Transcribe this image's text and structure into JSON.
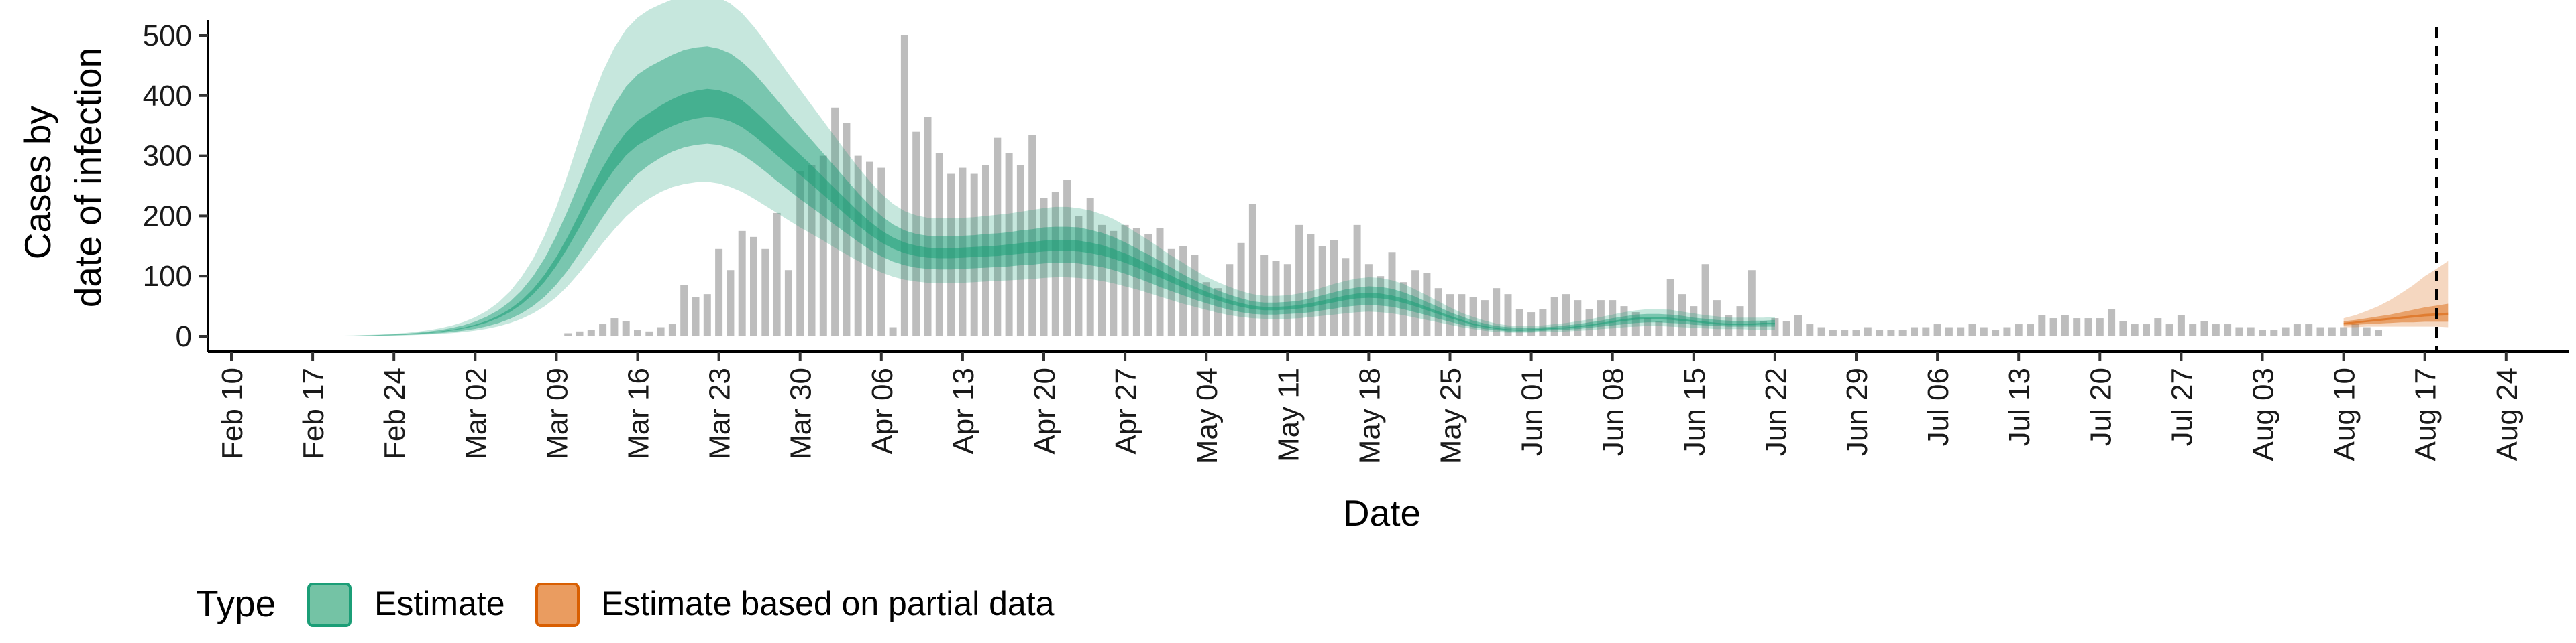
{
  "chart_data": {
    "type": "bar",
    "xlabel": "Date",
    "ylabel_lines": [
      "Cases by",
      "date of infection"
    ],
    "ylim": [
      -28,
      525
    ],
    "y_ticks": [
      0,
      100,
      200,
      300,
      400,
      500
    ],
    "x_tick_labels": [
      "Feb 10",
      "Feb 17",
      "Feb 24",
      "Mar 02",
      "Mar 09",
      "Mar 16",
      "Mar 23",
      "Mar 30",
      "Apr 06",
      "Apr 13",
      "Apr 20",
      "Apr 27",
      "May 04",
      "May 11",
      "May 18",
      "May 25",
      "Jun 01",
      "Jun 08",
      "Jun 15",
      "Jun 22",
      "Jun 29",
      "Jul 06",
      "Jul 13",
      "Jul 20",
      "Jul 27",
      "Aug 03",
      "Aug 10",
      "Aug 17",
      "Aug 24"
    ],
    "x_tick_day_index": [
      0,
      7,
      14,
      21,
      28,
      35,
      42,
      49,
      56,
      63,
      70,
      77,
      84,
      91,
      98,
      105,
      112,
      119,
      126,
      133,
      140,
      147,
      154,
      161,
      168,
      175,
      182,
      189,
      196
    ],
    "date_index_note": "day 0 = Feb 10",
    "vline_day": 190,
    "bars_start_day": 29,
    "reported_cases": [
      5,
      8,
      10,
      20,
      30,
      25,
      10,
      8,
      15,
      20,
      85,
      65,
      70,
      145,
      110,
      175,
      165,
      145,
      205,
      110,
      275,
      285,
      300,
      380,
      355,
      300,
      290,
      280,
      15,
      500,
      340,
      365,
      305,
      270,
      280,
      270,
      285,
      330,
      305,
      285,
      335,
      230,
      240,
      260,
      200,
      230,
      185,
      175,
      185,
      180,
      170,
      180,
      145,
      150,
      135,
      90,
      80,
      120,
      155,
      220,
      135,
      125,
      120,
      185,
      170,
      150,
      160,
      130,
      185,
      120,
      100,
      140,
      90,
      110,
      105,
      80,
      70,
      70,
      65,
      60,
      80,
      70,
      45,
      40,
      45,
      65,
      70,
      60,
      45,
      60,
      60,
      50,
      40,
      30,
      25,
      95,
      70,
      50,
      120,
      60,
      35,
      50,
      110,
      25,
      30,
      25,
      35,
      20,
      15,
      10,
      10,
      10,
      15,
      10,
      10,
      10,
      15,
      15,
      20,
      15,
      15,
      20,
      15,
      10,
      15,
      20,
      20,
      35,
      30,
      35,
      30,
      30,
      30,
      45,
      25,
      20,
      20,
      30,
      20,
      35,
      20,
      25,
      20,
      20,
      15,
      15,
      10,
      10,
      15,
      20,
      20,
      15,
      15,
      15,
      20,
      15,
      10
    ],
    "series": [
      {
        "name": "Estimate",
        "color": "#1b9e77",
        "start_day": 7,
        "median": [
          0.3,
          0.4,
          0.5,
          0.7,
          1.0,
          1.3,
          1.8,
          2.4,
          3.2,
          4.3,
          5.8,
          7.7,
          10.2,
          13.6,
          18.1,
          24.1,
          32.1,
          42.6,
          56.5,
          74.3,
          96.9,
          124.5,
          157,
          193,
          231,
          265,
          295,
          320,
          338,
          350,
          362,
          372,
          380,
          385,
          388,
          386,
          380,
          370,
          355,
          338,
          320,
          302,
          285,
          268,
          250,
          232,
          214,
          196,
          180,
          166,
          155,
          147,
          142,
          139,
          138,
          138,
          139,
          140,
          141,
          142,
          144,
          146,
          148,
          150,
          151,
          151,
          150,
          147,
          143,
          137,
          130,
          122,
          113,
          104,
          95,
          86,
          78,
          70,
          63,
          57,
          52,
          48,
          46,
          46,
          47,
          49,
          52,
          56,
          60,
          64,
          67,
          68,
          67,
          64,
          59,
          53,
          46,
          39,
          32,
          26,
          20,
          16,
          13,
          11,
          10,
          11,
          12,
          13,
          14,
          16,
          18,
          21,
          24,
          27,
          29,
          30,
          30,
          29,
          27,
          25,
          23,
          21,
          20,
          20,
          20,
          21,
          21
        ],
        "lower50": [
          0.2,
          0.3,
          0.4,
          0.5,
          0.7,
          0.9,
          1.2,
          1.6,
          2.2,
          2.9,
          4.0,
          5.3,
          7.0,
          9.3,
          12.3,
          16.4,
          21.7,
          28.8,
          38.2,
          50.4,
          66,
          86,
          110,
          138,
          168,
          198,
          226,
          250,
          270,
          285,
          297,
          307,
          314,
          318,
          320,
          318,
          312,
          302,
          289,
          274,
          258,
          243,
          228,
          214,
          200,
          185,
          171,
          157,
          144,
          133,
          124,
          118,
          114,
          112,
          111,
          111,
          112,
          113,
          114,
          115,
          116,
          118,
          119,
          121,
          122,
          122,
          121,
          118,
          115,
          110,
          104,
          97,
          90,
          82,
          75,
          68,
          61,
          55,
          49,
          44,
          40,
          37,
          36,
          36,
          37,
          38,
          40,
          43,
          46,
          49,
          51,
          52,
          51,
          49,
          45,
          40,
          35,
          29,
          24,
          19,
          15,
          12,
          10,
          8,
          8,
          8,
          9,
          10,
          11,
          12,
          14,
          16,
          18,
          20,
          22,
          23,
          23,
          22,
          21,
          19,
          18,
          17,
          16,
          16,
          16,
          16,
          16
        ],
        "upper50": [
          0.4,
          0.5,
          0.7,
          0.9,
          1.3,
          1.7,
          2.4,
          3.2,
          4.3,
          5.8,
          7.8,
          10.4,
          13.8,
          18.3,
          24.4,
          32.5,
          43.3,
          57.5,
          76.2,
          100,
          130,
          167,
          210,
          257,
          305,
          348,
          385,
          415,
          435,
          448,
          458,
          468,
          476,
          480,
          482,
          478,
          470,
          456,
          438,
          416,
          393,
          370,
          348,
          326,
          304,
          282,
          260,
          238,
          218,
          200,
          186,
          176,
          170,
          167,
          166,
          166,
          167,
          168,
          170,
          171,
          173,
          176,
          178,
          181,
          182,
          182,
          181,
          177,
          172,
          165,
          156,
          146,
          136,
          125,
          114,
          103,
          93,
          84,
          76,
          69,
          63,
          58,
          56,
          56,
          57,
          59,
          63,
          68,
          73,
          78,
          81,
          83,
          82,
          79,
          73,
          66,
          57,
          49,
          40,
          33,
          26,
          21,
          17,
          15,
          14,
          14,
          15,
          16,
          18,
          20,
          23,
          26,
          30,
          33,
          36,
          37,
          37,
          36,
          34,
          31,
          29,
          27,
          26,
          25,
          26,
          26,
          27
        ],
        "lower90": [
          0.1,
          0.2,
          0.3,
          0.4,
          0.5,
          0.7,
          0.9,
          1.2,
          1.6,
          2.2,
          3.0,
          4.0,
          5.3,
          7.0,
          9.3,
          12.4,
          16.4,
          21.8,
          28.9,
          38.1,
          50,
          65,
          84,
          106,
          130,
          155,
          178,
          199,
          216,
          229,
          240,
          248,
          253,
          256,
          257,
          254,
          248,
          240,
          229,
          217,
          205,
          193,
          181,
          170,
          159,
          147,
          136,
          125,
          115,
          106,
          99,
          94,
          91,
          89,
          88,
          88,
          89,
          90,
          91,
          92,
          93,
          94,
          95,
          97,
          98,
          98,
          97,
          95,
          92,
          88,
          83,
          78,
          72,
          66,
          60,
          54,
          49,
          44,
          39,
          35,
          32,
          30,
          29,
          29,
          29,
          30,
          32,
          34,
          36,
          38,
          40,
          41,
          40,
          38,
          35,
          31,
          27,
          23,
          19,
          15,
          12,
          9,
          7,
          6,
          6,
          6,
          7,
          7,
          8,
          9,
          10,
          12,
          13,
          15,
          16,
          17,
          17,
          16,
          15,
          14,
          13,
          12,
          12,
          12,
          11,
          11,
          11
        ],
        "upper90": [
          0.5,
          0.7,
          0.9,
          1.2,
          1.7,
          2.3,
          3.1,
          4.2,
          5.6,
          7.5,
          10.0,
          13.4,
          17.8,
          23.7,
          31.6,
          42.1,
          56.1,
          74.5,
          98.8,
          129,
          168,
          215,
          270,
          330,
          390,
          440,
          480,
          510,
          530,
          543,
          552,
          560,
          565,
          568,
          568,
          563,
          553,
          537,
          515,
          490,
          463,
          436,
          410,
          384,
          358,
          332,
          306,
          281,
          258,
          237,
          220,
          208,
          201,
          197,
          196,
          196,
          197,
          198,
          200,
          202,
          204,
          207,
          210,
          213,
          215,
          215,
          213,
          209,
          203,
          195,
          184,
          172,
          160,
          147,
          134,
          122,
          110,
          99,
          90,
          82,
          75,
          70,
          67,
          67,
          68,
          71,
          75,
          81,
          87,
          92,
          96,
          98,
          97,
          93,
          87,
          78,
          68,
          58,
          48,
          39,
          32,
          26,
          21,
          18,
          17,
          17,
          18,
          20,
          22,
          25,
          28,
          32,
          36,
          40,
          43,
          45,
          45,
          44,
          41,
          38,
          35,
          33,
          31,
          31,
          31,
          31,
          32
        ]
      },
      {
        "name": "Estimate based on partial data",
        "color": "#d95f02",
        "start_day": 182,
        "median": [
          21,
          23,
          25,
          27,
          29,
          31,
          33,
          35,
          36,
          37
        ],
        "lower50": [
          18,
          19,
          20,
          21,
          22,
          23,
          23,
          24,
          24,
          24
        ],
        "upper50": [
          25,
          27,
          30,
          33,
          36,
          40,
          44,
          48,
          51,
          54
        ],
        "lower90": [
          15,
          15,
          16,
          16,
          16,
          16,
          16,
          16,
          16,
          15
        ],
        "upper90": [
          30,
          35,
          42,
          50,
          60,
          72,
          85,
          100,
          112,
          125
        ]
      }
    ],
    "legend": {
      "title": "Type",
      "entries": [
        "Estimate",
        "Estimate based on partial data"
      ],
      "placement": "bottom-left"
    }
  }
}
